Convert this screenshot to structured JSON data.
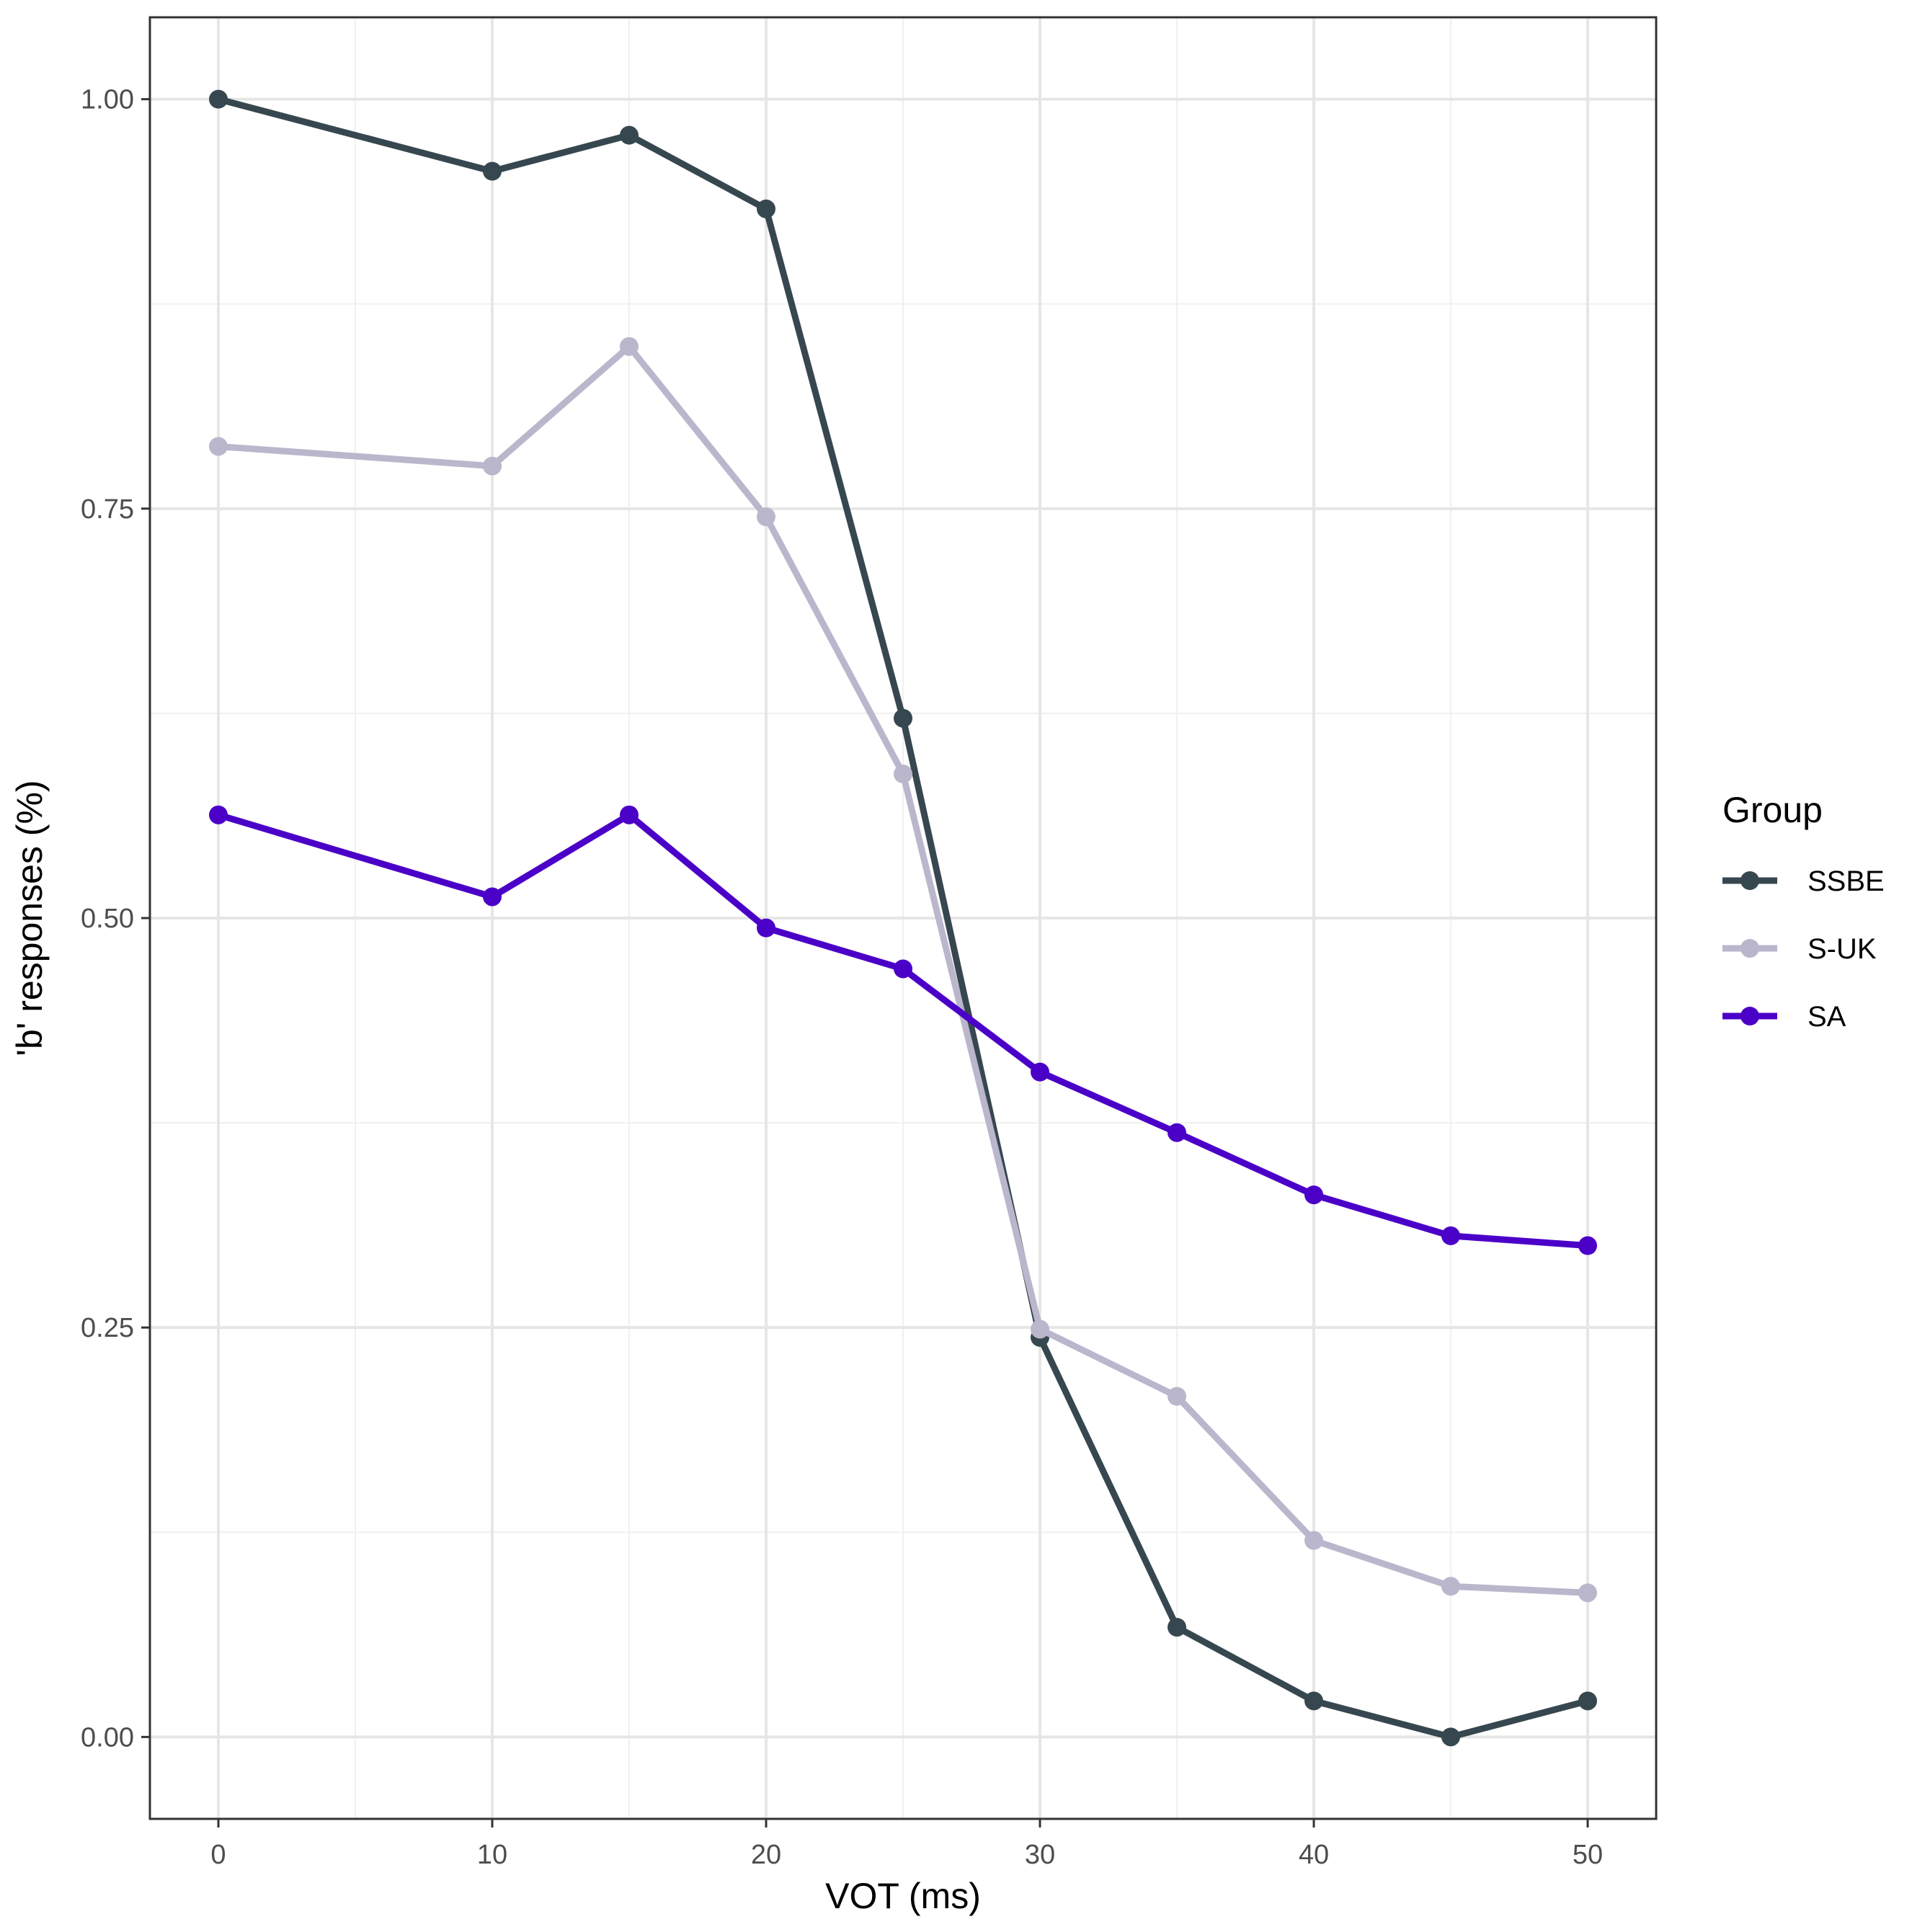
{
  "chart_data": {
    "type": "line",
    "title": "",
    "xlabel": "VOT (ms)",
    "ylabel": "'b' responses (%)",
    "xlim": [
      -2.5,
      52.5
    ],
    "ylim": [
      -0.05,
      1.05
    ],
    "x_ticks": [
      0,
      10,
      20,
      30,
      40,
      50
    ],
    "x_tick_labels": [
      "0",
      "10",
      "20",
      "30",
      "40",
      "50"
    ],
    "x_minor_ticks": [
      5,
      15,
      25,
      35,
      45
    ],
    "y_ticks": [
      0.0,
      0.25,
      0.5,
      0.75,
      1.0
    ],
    "y_tick_labels": [
      "0.00",
      "0.25",
      "0.50",
      "0.75",
      "1.00"
    ],
    "y_minor_ticks": [
      0.125,
      0.375,
      0.625,
      0.875
    ],
    "grid": true,
    "legend": {
      "title": "Group",
      "position": "right"
    },
    "x": [
      0,
      10,
      15,
      20,
      25,
      30,
      35,
      40,
      45,
      50
    ],
    "series": [
      {
        "name": "SSBE",
        "color": "#37474f",
        "values": [
          1.0,
          0.956,
          0.978,
          0.933,
          0.622,
          0.244,
          0.067,
          0.022,
          0.0,
          0.022
        ]
      },
      {
        "name": "S-UK",
        "color": "#bab6cc",
        "values": [
          0.788,
          0.776,
          0.849,
          0.745,
          0.588,
          0.249,
          0.208,
          0.12,
          0.092,
          0.088
        ]
      },
      {
        "name": "SA",
        "color": "#4b00c8",
        "values": [
          0.563,
          0.513,
          0.563,
          0.494,
          0.469,
          0.406,
          0.369,
          0.331,
          0.306,
          0.3
        ]
      }
    ]
  }
}
